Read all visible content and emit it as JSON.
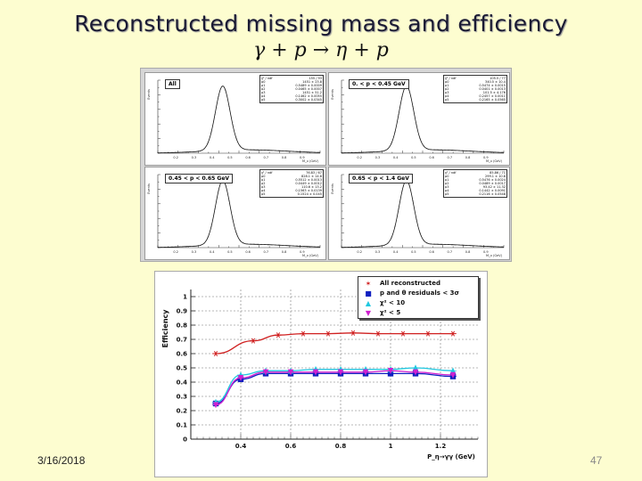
{
  "slide": {
    "title": "Reconstructed missing mass and efficiency",
    "subtitle": "γ + p → η + p",
    "date": "3/16/2018",
    "page_number": "47"
  },
  "mass_panels": [
    {
      "label": "All",
      "ylabel": "Events",
      "xlabel": "M_x (GeV)",
      "ticks": [
        "0.2",
        "0.3",
        "0.4",
        "0.5",
        "0.6",
        "0.7",
        "0.8",
        "0.9"
      ],
      "stats": [
        [
          "χ² / ndf",
          "155 / 93"
        ],
        [
          "p0",
          "1451 ± 23.8"
        ],
        [
          "p1",
          "0.5489 ± 0.0009"
        ],
        [
          "p2",
          "0.0465 ± 0.0007"
        ],
        [
          "p3",
          "1451 ± 51.2"
        ],
        [
          "p4",
          "0.1462 ± 0.0055"
        ],
        [
          "p5",
          "0.3002 ± 0.0345"
        ]
      ]
    },
    {
      "label": "0. < p < 0.45 GeV",
      "ylabel": "Events",
      "xlabel": "M_x (GeV)",
      "ticks": [
        "0.2",
        "0.3",
        "0.4",
        "0.5",
        "0.6",
        "0.7",
        "0.8",
        "0.9"
      ],
      "stats": [
        [
          "χ² / ndf",
          "105.5 / 77"
        ],
        [
          "p0",
          "340.5 ± 10.4"
        ],
        [
          "p1",
          "0.5474 ± 0.0015"
        ],
        [
          "p2",
          "0.0401 ± 0.0013"
        ],
        [
          "p3",
          "101.5 ± 4.176"
        ],
        [
          "p4",
          "0.2457 ± 0.0011"
        ],
        [
          "p5",
          "0.2165 ± 0.0565"
        ]
      ]
    },
    {
      "label": "0.45 < p < 0.65 GeV",
      "ylabel": "Events",
      "xlabel": "M_x (GeV)",
      "ticks": [
        "0.2",
        "0.3",
        "0.4",
        "0.5",
        "0.6",
        "0.7",
        "0.8",
        "0.9"
      ],
      "stats": [
        [
          "χ² / ndf",
          "76.83 / 67"
        ],
        [
          "p0",
          "828.1 ± 14.8"
        ],
        [
          "p1",
          "0.5512 ± 0.0013"
        ],
        [
          "p2",
          "0.0449 ± 0.0012"
        ],
        [
          "p3",
          "110.6 ± 13.2"
        ],
        [
          "p4",
          "0.1563 ± 0.0139"
        ],
        [
          "p5",
          "0.1524 ± 0.045"
        ]
      ]
    },
    {
      "label": "0.65 < p < 1.4 GeV",
      "ylabel": "Events",
      "xlabel": "M_x (GeV)",
      "ticks": [
        "0.2",
        "0.3",
        "0.4",
        "0.5",
        "0.6",
        "0.7",
        "0.8",
        "0.9"
      ],
      "stats": [
        [
          "χ² / ndf",
          "85.86 / 71"
        ],
        [
          "p0",
          "299.1 ± 10.8"
        ],
        [
          "p1",
          "0.5476 ± 0.0024"
        ],
        [
          "p2",
          "0.0489 ± 0.0017"
        ],
        [
          "p3",
          "93.42 ± 11.32"
        ],
        [
          "p4",
          "0.1442 ± 0.0091"
        ],
        [
          "p5",
          "0.2116 ± 0.0548"
        ]
      ]
    }
  ],
  "chart_data": {
    "type": "scatter",
    "title": "",
    "ylabel": "Efficiency",
    "xlabel": "P_η→γγ (GeV)",
    "xlim": [
      0.2,
      1.35
    ],
    "ylim": [
      0,
      1.05
    ],
    "x_ticks": [
      "0.4",
      "0.6",
      "0.8",
      "1",
      "1.2"
    ],
    "y_ticks": [
      "0",
      "0.1",
      "0.2",
      "0.3",
      "0.4",
      "0.5",
      "0.6",
      "0.7",
      "0.8",
      "0.9",
      "1"
    ],
    "series": [
      {
        "name": "All reconstructed",
        "color": "#d02020",
        "marker": "star",
        "x": [
          0.3,
          0.45,
          0.55,
          0.65,
          0.75,
          0.85,
          0.95,
          1.05,
          1.15,
          1.25
        ],
        "y": [
          0.6,
          0.69,
          0.73,
          0.74,
          0.74,
          0.745,
          0.74,
          0.74,
          0.74,
          0.74
        ]
      },
      {
        "name": "p and θ residuals < 3σ",
        "color": "#1020c0",
        "marker": "square",
        "x": [
          0.3,
          0.4,
          0.5,
          0.6,
          0.7,
          0.8,
          0.9,
          1.0,
          1.1,
          1.25
        ],
        "y": [
          0.25,
          0.42,
          0.46,
          0.46,
          0.46,
          0.46,
          0.46,
          0.46,
          0.46,
          0.44
        ]
      },
      {
        "name": "χ² < 10",
        "color": "#20c8e0",
        "marker": "triangle-up",
        "x": [
          0.3,
          0.4,
          0.5,
          0.6,
          0.7,
          0.8,
          0.9,
          1.0,
          1.1,
          1.25
        ],
        "y": [
          0.26,
          0.45,
          0.48,
          0.48,
          0.49,
          0.49,
          0.49,
          0.49,
          0.5,
          0.48
        ]
      },
      {
        "name": "χ² < 5",
        "color": "#d020d0",
        "marker": "triangle-down",
        "x": [
          0.3,
          0.4,
          0.5,
          0.6,
          0.7,
          0.8,
          0.9,
          1.0,
          1.1,
          1.25
        ],
        "y": [
          0.24,
          0.43,
          0.47,
          0.47,
          0.47,
          0.47,
          0.47,
          0.48,
          0.47,
          0.45
        ]
      }
    ]
  }
}
